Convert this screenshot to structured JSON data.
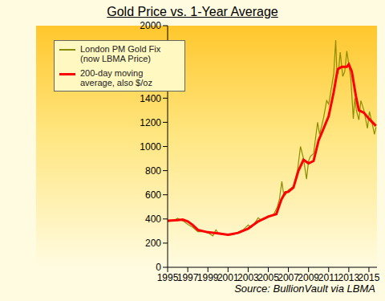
{
  "chart_data": {
    "type": "line",
    "title": "Gold Price vs. 1-Year Average",
    "source": "Source: BullionVault via LBMA",
    "xlim": [
      1995,
      2015.8
    ],
    "xticks": [
      1995,
      1997,
      1999,
      2001,
      2003,
      2005,
      2007,
      2009,
      2011,
      2013,
      2015
    ],
    "ylim": [
      0,
      2000
    ],
    "yticks": [
      0,
      200,
      400,
      600,
      800,
      1000,
      1200,
      1400,
      1600,
      1800,
      2000
    ],
    "grid": false,
    "legend": "upper left",
    "series": [
      {
        "name": "London PM Gold Fix (now LBMA Price)",
        "color": "#8c8c00",
        "x": [
          1995.0,
          1995.5,
          1996.0,
          1996.3,
          1996.6,
          1997.0,
          1997.5,
          1998.0,
          1998.5,
          1998.8,
          1999.0,
          1999.5,
          1999.8,
          2000.0,
          2000.5,
          2001.0,
          2001.5,
          2001.8,
          2002.0,
          2002.5,
          2003.0,
          2003.3,
          2003.6,
          2004.0,
          2004.3,
          2004.6,
          2005.0,
          2005.5,
          2005.9,
          2006.1,
          2006.35,
          2006.5,
          2006.7,
          2007.0,
          2007.5,
          2007.9,
          2008.2,
          2008.5,
          2008.8,
          2009.0,
          2009.2,
          2009.5,
          2009.9,
          2010.1,
          2010.5,
          2010.8,
          2011.0,
          2011.3,
          2011.5,
          2011.7,
          2011.8,
          2011.95,
          2012.15,
          2012.4,
          2012.6,
          2012.8,
          2013.0,
          2013.2,
          2013.45,
          2013.6,
          2013.75,
          2014.0,
          2014.2,
          2014.5,
          2014.85,
          2015.05,
          2015.3,
          2015.55,
          2015.7
        ],
        "values": [
          380,
          385,
          405,
          390,
          380,
          355,
          330,
          295,
          295,
          290,
          285,
          260,
          310,
          285,
          280,
          265,
          270,
          280,
          290,
          310,
          350,
          330,
          360,
          410,
          390,
          400,
          425,
          430,
          500,
          560,
          710,
          620,
          600,
          640,
          670,
          800,
          1000,
          900,
          730,
          880,
          920,
          940,
          1200,
          1100,
          1240,
          1380,
          1350,
          1500,
          1600,
          1880,
          1650,
          1600,
          1780,
          1580,
          1620,
          1790,
          1680,
          1560,
          1230,
          1400,
          1300,
          1220,
          1380,
          1300,
          1150,
          1290,
          1200,
          1100,
          1160
        ]
      },
      {
        "name": "200-day moving average, also $/oz",
        "color": "#ff0000",
        "x": [
          1995.0,
          1996.0,
          1996.5,
          1997.0,
          1997.5,
          1998.0,
          1999.0,
          2000.0,
          2001.0,
          2002.0,
          2003.0,
          2004.0,
          2005.0,
          2005.8,
          2006.3,
          2006.7,
          2007.0,
          2007.5,
          2008.0,
          2008.5,
          2009.0,
          2009.5,
          2010.0,
          2010.5,
          2011.0,
          2011.5,
          2011.9,
          2012.3,
          2012.8,
          2013.0,
          2013.3,
          2013.7,
          2014.0,
          2014.5,
          2015.0,
          2015.7
        ],
        "values": [
          385,
          390,
          395,
          380,
          350,
          310,
          290,
          280,
          270,
          285,
          320,
          380,
          420,
          440,
          560,
          620,
          625,
          660,
          800,
          890,
          860,
          880,
          1050,
          1150,
          1250,
          1450,
          1640,
          1660,
          1660,
          1680,
          1620,
          1420,
          1300,
          1280,
          1230,
          1170
        ]
      }
    ]
  }
}
